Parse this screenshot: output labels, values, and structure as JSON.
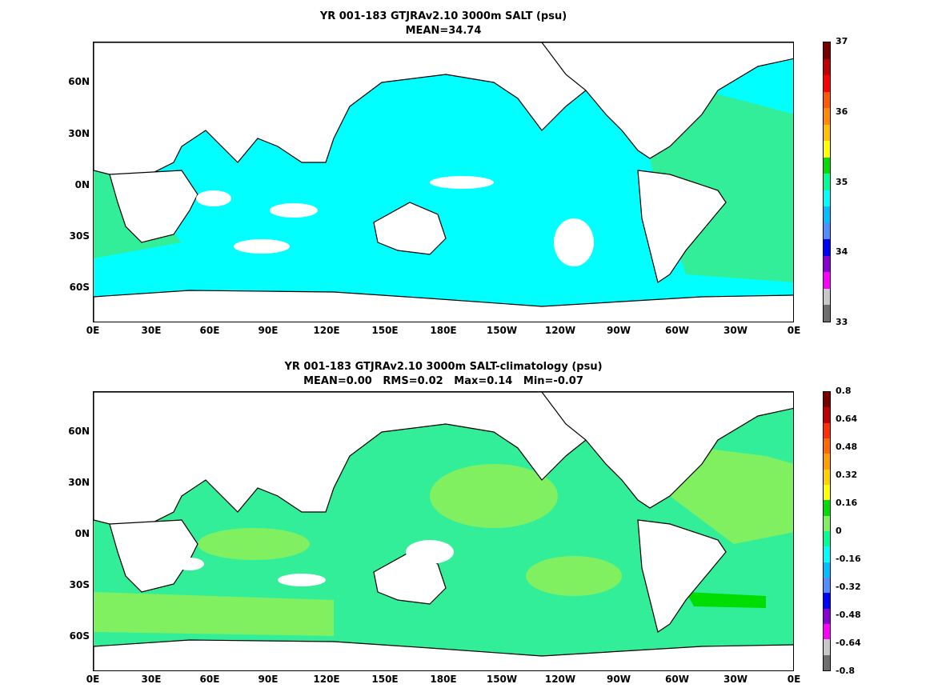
{
  "panels": [
    {
      "title_line1": "YR 001-183 GTJRAv2.10 3000m SALT (psu)",
      "title_line2": "MEAN=34.74",
      "y_ticks": [
        "60N",
        "30N",
        "0N",
        "30S",
        "60S"
      ],
      "x_ticks": [
        "0E",
        "30E",
        "60E",
        "90E",
        "120E",
        "150E",
        "180E",
        "150W",
        "120W",
        "90W",
        "60W",
        "30W",
        "0E"
      ],
      "colorbar": {
        "labels": [
          "37",
          "36",
          "35",
          "34",
          "33"
        ],
        "colors": [
          "#7a0000",
          "#c00000",
          "#ff0000",
          "#ff5a00",
          "#ff8c00",
          "#ffc000",
          "#ffff00",
          "#00dd00",
          "#00ff99",
          "#00ffff",
          "#00bfff",
          "#4f8fff",
          "#0000ff",
          "#8a00d4",
          "#ff00ff",
          "#c8c8c8",
          "#6e6e6e"
        ]
      },
      "fill_colors": {
        "dominant": "#00ffff",
        "atlantic": "#33ee99",
        "light": "#80f060"
      }
    },
    {
      "title_line1": "YR 001-183 GTJRAv2.10 3000m SALT-climatology (psu)",
      "title_line2": "MEAN=0.00   RMS=0.02   Max=0.14   Min=-0.07",
      "y_ticks": [
        "60N",
        "30N",
        "0N",
        "30S",
        "60S"
      ],
      "x_ticks": [
        "0E",
        "30E",
        "60E",
        "90E",
        "120E",
        "150E",
        "180E",
        "150W",
        "120W",
        "90W",
        "60W",
        "30W",
        "0E"
      ],
      "colorbar": {
        "labels": [
          "0.8",
          "0.64",
          "0.48",
          "0.32",
          "0.16",
          "0",
          "-0.16",
          "-0.32",
          "-0.48",
          "-0.64",
          "-0.8"
        ],
        "colors": [
          "#7a0000",
          "#c00000",
          "#ff3000",
          "#ff6a00",
          "#ffa000",
          "#ffd000",
          "#ffff00",
          "#00dd00",
          "#80f060",
          "#00ff99",
          "#00ffff",
          "#00bfff",
          "#4f8fff",
          "#0000ff",
          "#8a00d4",
          "#ff00ff",
          "#c8c8c8",
          "#6e6e6e"
        ]
      },
      "fill_colors": {
        "dominant": "#33ee99",
        "light": "#80f060",
        "bright": "#00dd00"
      }
    }
  ]
}
